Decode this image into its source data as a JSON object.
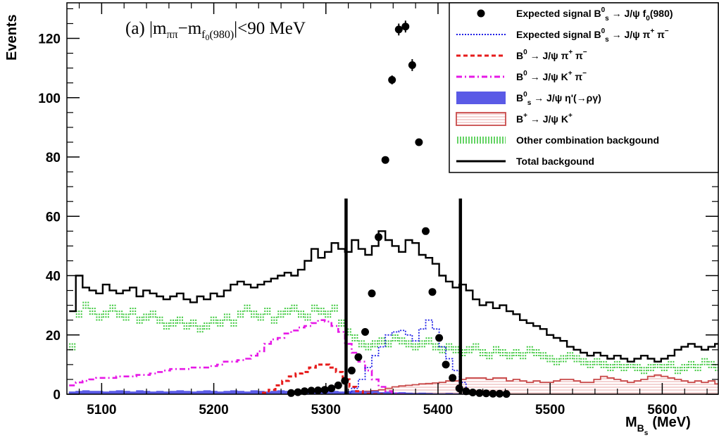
{
  "chart_data": {
    "type": "histogram",
    "annotation": {
      "prefix": "(a) |m",
      "sub1": "ππ",
      "mid": "−m",
      "sub2": "f",
      "sub2b": "0",
      "sub2c": "(980)",
      "suffix": "|<90 MeV"
    },
    "ylabel": "Events",
    "xlabel": {
      "main": "M",
      "sub": "B",
      "subsub": "s",
      "unit": "(MeV)"
    },
    "xlim": [
      5069,
      5650
    ],
    "ylim": [
      0,
      132
    ],
    "xticks": [
      5100,
      5200,
      5300,
      5400,
      5500,
      5600
    ],
    "yticks": [
      0,
      20,
      40,
      60,
      80,
      100,
      120
    ],
    "cut_lines": [
      5318,
      5420
    ],
    "bin_width": 6,
    "legend": {
      "position": "top-right",
      "entries": [
        {
          "key": "signal_f0",
          "style": "dot",
          "color": "#000000",
          "parts": [
            {
              "t": "Expected signal B"
            },
            {
              "t": "0",
              "sup": true
            },
            {
              "t": "s",
              "sub": true
            },
            {
              "t": " → J/ψ f"
            },
            {
              "t": "0",
              "sub": true
            },
            {
              "t": "(980)"
            }
          ]
        },
        {
          "key": "signal_pipi",
          "style": "dotted",
          "color": "#1f1fe6",
          "parts": [
            {
              "t": "Expected signal B"
            },
            {
              "t": "0",
              "sup": true
            },
            {
              "t": "s",
              "sub": true
            },
            {
              "t": " → J/ψ π"
            },
            {
              "t": "+",
              "sup": true
            },
            {
              "t": " π"
            },
            {
              "t": "−",
              "sup": true
            }
          ]
        },
        {
          "key": "b0_pipi",
          "style": "dashed",
          "color": "#e61b1b",
          "parts": [
            {
              "t": "B"
            },
            {
              "t": "0",
              "sup": true
            },
            {
              "t": " → J/ψ π"
            },
            {
              "t": "+",
              "sup": true
            },
            {
              "t": " π"
            },
            {
              "t": "−",
              "sup": true
            }
          ]
        },
        {
          "key": "b0_kpi",
          "style": "dashdot",
          "color": "#e619e6",
          "parts": [
            {
              "t": "B"
            },
            {
              "t": "0",
              "sup": true
            },
            {
              "t": " → J/ψ K"
            },
            {
              "t": "+",
              "sup": true
            },
            {
              "t": " π"
            },
            {
              "t": "−",
              "sup": true
            }
          ]
        },
        {
          "key": "bs_etap",
          "style": "box",
          "color": "#5a5ae6",
          "parts": [
            {
              "t": "B"
            },
            {
              "t": "0",
              "sup": true
            },
            {
              "t": "s",
              "sub": true
            },
            {
              "t": " → J/ψ η'(→ργ)"
            }
          ]
        },
        {
          "key": "bplus_k",
          "style": "hatchbox",
          "color": "#c94a4a",
          "parts": [
            {
              "t": "B"
            },
            {
              "t": "+",
              "sup": true
            },
            {
              "t": " → J/ψ K"
            },
            {
              "t": "+",
              "sup": true
            }
          ]
        },
        {
          "key": "other",
          "style": "greenhatch",
          "color": "#3cc83c",
          "parts": [
            {
              "t": "Other combination backgound"
            }
          ]
        },
        {
          "key": "total",
          "style": "solid",
          "color": "#000000",
          "parts": [
            {
              "t": "Total backgound"
            }
          ]
        }
      ]
    },
    "series": {
      "signal_f0": {
        "x": [
          5269,
          5275,
          5281,
          5287,
          5293,
          5299,
          5305,
          5311,
          5317,
          5323,
          5329,
          5335,
          5341,
          5347,
          5353,
          5359,
          5365,
          5371,
          5377,
          5383,
          5389,
          5395,
          5401,
          5407,
          5413,
          5419,
          5425,
          5431,
          5437,
          5443,
          5449,
          5455,
          5461
        ],
        "y": [
          0.4,
          0.7,
          1,
          1.2,
          1.3,
          1.5,
          2,
          3,
          4.5,
          8,
          12.5,
          21,
          34,
          53,
          79,
          106,
          123,
          124,
          111,
          85,
          55,
          34.5,
          19,
          10,
          5.5,
          2,
          1,
          0.6,
          0.4,
          0.3,
          0.2,
          0.2,
          0.1
        ],
        "err": [
          0,
          0,
          0,
          0,
          0,
          0,
          0,
          0,
          0,
          0,
          0,
          0,
          1,
          1,
          1,
          1.5,
          2,
          2,
          2,
          1,
          1,
          1,
          0,
          0,
          0,
          0,
          0,
          0,
          0,
          0,
          0,
          0,
          0
        ]
      },
      "signal_pipi": {
        "x_start": 5305,
        "y": [
          0,
          0,
          0.5,
          2,
          5,
          9,
          13,
          16,
          20,
          21,
          21.5,
          20,
          18,
          22,
          25,
          22,
          16,
          12,
          8,
          4,
          1.5,
          0.5,
          0
        ]
      },
      "b0_pipi": {
        "x_start": 5243,
        "y": [
          0.5,
          1.5,
          3,
          4.5,
          6,
          7,
          7.5,
          9,
          10,
          10,
          9,
          7.5,
          5,
          2.5,
          1,
          0.2,
          0,
          0
        ]
      },
      "b0_kpi": {
        "x_start": 5071,
        "y": [
          3,
          4,
          4.5,
          5,
          5.5,
          5.5,
          5.5,
          6,
          6,
          6,
          6.5,
          6.5,
          7,
          7.5,
          8,
          8.5,
          8.5,
          8.5,
          9,
          9,
          9,
          9.5,
          10,
          11,
          11,
          11.5,
          12,
          13,
          14.5,
          17,
          18.5,
          19,
          20.5,
          21.5,
          22.5,
          23,
          24,
          25,
          24.5,
          23,
          21,
          17,
          14,
          11,
          8,
          5,
          2.5,
          1,
          0.3,
          0
        ]
      },
      "bs_etap": {
        "x_start": 5071,
        "y": [
          0.8,
          1,
          1.2,
          1,
          1,
          0.8,
          1,
          1.2,
          1,
          0.8,
          1.2,
          1,
          0.8,
          1,
          0.8,
          1,
          1.2,
          1,
          0.8,
          1,
          1.2,
          1,
          0.8,
          1,
          1.2,
          1,
          0.8,
          1.2,
          1,
          0.8,
          1,
          1.2,
          1,
          0.8,
          1,
          1,
          0.8,
          1,
          1.2,
          1,
          0.8,
          1,
          1.2,
          1,
          0.8,
          1,
          0.6,
          0.8,
          0.5,
          0.6,
          0.4,
          0.3,
          0.4,
          0.3,
          0.2,
          0.2,
          0.3,
          0.2,
          0.1,
          0.2,
          0.1,
          0.1,
          0.1,
          0.1,
          0.1
        ]
      },
      "bplus_k": {
        "x_start": 5305,
        "y": [
          0.2,
          0.3,
          0.5,
          0.6,
          0.8,
          1,
          1.2,
          1.5,
          2,
          2.5,
          2.8,
          3,
          3.2,
          3.5,
          3.6,
          3.8,
          4,
          4.5,
          4.5,
          5,
          5.5,
          5.5,
          5.5,
          5,
          5.5,
          5.5,
          4.5,
          5,
          4.5,
          4,
          4.5,
          4,
          4,
          4.5,
          5,
          5,
          4.5,
          4,
          4,
          5,
          6,
          5.5,
          5,
          4.5,
          4,
          4.5,
          5,
          6,
          6.5,
          6,
          5.5,
          5,
          4.5,
          4,
          4.5,
          4,
          4.5,
          3.5
        ]
      },
      "other": {
        "x_start": 5071,
        "y": [
          16,
          27,
          30,
          28,
          26,
          27,
          29,
          27,
          26,
          28,
          25,
          26,
          27,
          25,
          23,
          24,
          25,
          23,
          24,
          22,
          23,
          25,
          24,
          26,
          24,
          27,
          29,
          27,
          26,
          28,
          25,
          27,
          28,
          29,
          27,
          26,
          29,
          28,
          27,
          29,
          24,
          21,
          19,
          17,
          16,
          17,
          18,
          17,
          19,
          18,
          17,
          16,
          17,
          18,
          16,
          15,
          16,
          15,
          14,
          15,
          16,
          14,
          13,
          15,
          14,
          13,
          14,
          13,
          15,
          14,
          13,
          12,
          11,
          12,
          13,
          12,
          11,
          10,
          11,
          10,
          9,
          10,
          9,
          10,
          9,
          8,
          9,
          10,
          9,
          10,
          8,
          9,
          10,
          9,
          11,
          10,
          9,
          10,
          8,
          9,
          10,
          9,
          10,
          11,
          10,
          9,
          10,
          9,
          11,
          10,
          9,
          8,
          9,
          10,
          9,
          8,
          9,
          8,
          10,
          9,
          8,
          10,
          9,
          8,
          9,
          8,
          9,
          8,
          7,
          8,
          9,
          8,
          7,
          8,
          7,
          8,
          7,
          6,
          7,
          8,
          7,
          6,
          7,
          6,
          7,
          6,
          5,
          6,
          5,
          6,
          5,
          6,
          5
        ]
      },
      "total": {
        "x_start": 5071,
        "y": [
          28,
          40,
          36,
          35,
          34,
          37,
          35,
          34,
          35,
          36,
          33,
          35,
          34,
          33,
          32,
          33,
          34,
          32,
          31,
          33,
          32,
          34,
          33,
          35,
          37,
          38,
          37,
          36,
          37,
          38,
          39,
          40,
          41,
          40,
          42,
          45,
          49,
          46,
          48,
          51,
          49,
          48,
          52,
          49,
          47,
          50,
          55,
          52,
          50,
          48,
          52,
          51,
          47,
          46,
          44,
          40,
          38,
          36,
          37,
          35,
          32,
          30,
          31,
          29,
          30,
          28,
          27,
          25,
          24,
          23,
          22,
          20,
          19,
          18,
          16,
          15,
          14,
          13,
          14,
          13,
          12,
          13,
          12,
          11,
          12,
          13,
          12,
          11,
          12,
          13,
          15,
          16,
          17,
          16,
          15,
          16,
          17,
          16,
          15,
          14,
          15,
          16,
          15,
          14,
          16,
          17,
          15,
          14,
          15,
          14,
          13,
          14,
          12,
          13,
          14,
          13,
          14,
          13,
          12,
          13,
          12,
          11,
          12,
          13,
          12,
          11,
          12,
          11,
          10,
          11,
          12,
          11,
          10,
          11,
          10,
          9,
          10,
          11,
          10,
          9,
          8,
          9,
          8,
          7,
          8,
          7,
          6,
          7,
          8,
          7,
          6,
          7,
          6
        ]
      }
    }
  }
}
